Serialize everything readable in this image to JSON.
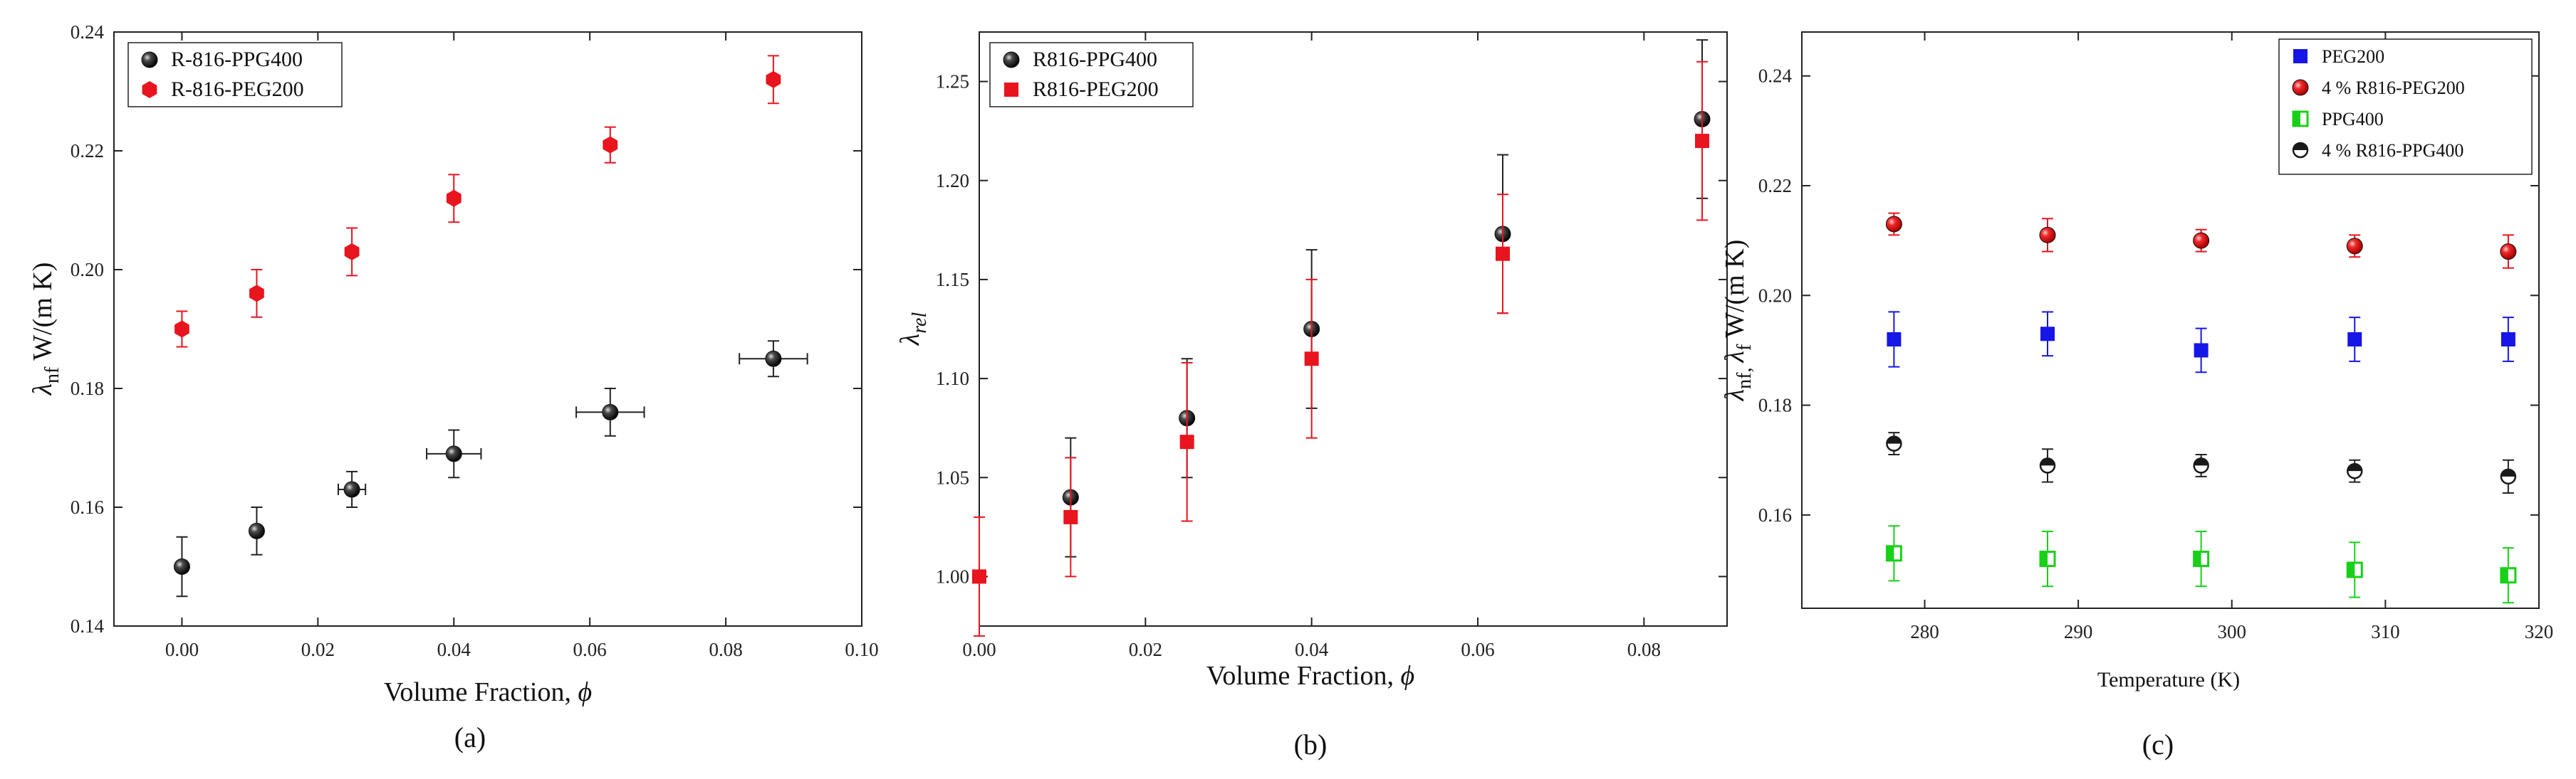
{
  "chart_data": [
    {
      "type": "scatter",
      "panel_label": "(a)",
      "xlabel": "Volume Fraction, ",
      "xlabel_symbol": "ϕ",
      "ylabel": "λ",
      "ylabel_sub": "nf",
      "ylabel_unit": " W/(m K)",
      "xlim": [
        -0.01,
        0.1
      ],
      "ylim": [
        0.14,
        0.24
      ],
      "xticks": [
        "0.00",
        "0.02",
        "0.04",
        "0.06",
        "0.08",
        "0.10"
      ],
      "xtick_values": [
        0.0,
        0.02,
        0.04,
        0.06,
        0.08,
        0.1
      ],
      "yticks": [
        "0.14",
        "0.16",
        "0.18",
        "0.20",
        "0.22",
        "0.24"
      ],
      "ytick_values": [
        0.14,
        0.16,
        0.18,
        0.2,
        0.22,
        0.24
      ],
      "legend_position": "top-left",
      "series": [
        {
          "name": "R-816-PPG400",
          "marker": "sphere",
          "color": "#1a1a1a",
          "x": [
            0.0,
            0.011,
            0.025,
            0.04,
            0.063,
            0.087
          ],
          "y": [
            0.15,
            0.156,
            0.163,
            0.169,
            0.176,
            0.185
          ],
          "yerr": [
            0.005,
            0.004,
            0.003,
            0.004,
            0.004,
            0.003
          ],
          "xerr": [
            0,
            0,
            0.002,
            0.004,
            0.005,
            0.005
          ]
        },
        {
          "name": "R-816-PEG200",
          "marker": "hexagon",
          "color": "#e8141e",
          "x": [
            0.0,
            0.011,
            0.025,
            0.04,
            0.063,
            0.087
          ],
          "y": [
            0.19,
            0.196,
            0.203,
            0.212,
            0.221,
            0.232
          ],
          "yerr": [
            0.003,
            0.004,
            0.004,
            0.004,
            0.003,
            0.004
          ],
          "xerr": [
            0,
            0,
            0,
            0,
            0,
            0
          ]
        }
      ]
    },
    {
      "type": "scatter",
      "panel_label": "(b)",
      "xlabel": "Volume Fraction, ",
      "xlabel_symbol": "ϕ",
      "ylabel": "λ",
      "ylabel_sub": "rel",
      "ylabel_unit": "",
      "xlim": [
        0.0,
        0.09
      ],
      "ylim": [
        0.975,
        1.275
      ],
      "xticks": [
        "0.00",
        "0.02",
        "0.04",
        "0.06",
        "0.08"
      ],
      "xtick_values": [
        0.0,
        0.02,
        0.04,
        0.06,
        0.08
      ],
      "yticks": [
        "1.00",
        "1.05",
        "1.10",
        "1.15",
        "1.20",
        "1.25"
      ],
      "ytick_values": [
        1.0,
        1.05,
        1.1,
        1.15,
        1.2,
        1.25
      ],
      "legend_position": "top-left",
      "series": [
        {
          "name": "R816-PPG400",
          "marker": "sphere",
          "color": "#1a1a1a",
          "x": [
            0.011,
            0.025,
            0.04,
            0.063,
            0.087
          ],
          "y": [
            1.04,
            1.08,
            1.125,
            1.173,
            1.231
          ],
          "yerr": [
            0.03,
            0.03,
            0.04,
            0.04,
            0.04
          ]
        },
        {
          "name": "R816-PEG200",
          "marker": "square",
          "color": "#e8141e",
          "x": [
            0.0,
            0.011,
            0.025,
            0.04,
            0.063,
            0.087
          ],
          "y": [
            1.0,
            1.03,
            1.068,
            1.11,
            1.163,
            1.22
          ],
          "yerr": [
            0.03,
            0.03,
            0.04,
            0.04,
            0.03,
            0.04
          ]
        }
      ]
    },
    {
      "type": "scatter",
      "panel_label": "(c)",
      "xlabel": "Temperature (K)",
      "xlabel_symbol": "",
      "ylabel": "λ",
      "ylabel_sub": "nf, ",
      "ylabel_mid": "λ",
      "ylabel_sub2": "f",
      "ylabel_unit": " W/(m K)",
      "xlim": [
        272,
        320
      ],
      "ylim": [
        0.143,
        0.248
      ],
      "xticks": [
        "280",
        "290",
        "300",
        "310",
        "320"
      ],
      "xtick_values": [
        280,
        290,
        300,
        310,
        320
      ],
      "yticks": [
        "0.16",
        "0.18",
        "0.20",
        "0.22",
        "0.24"
      ],
      "ytick_values": [
        0.16,
        0.18,
        0.2,
        0.22,
        0.24
      ],
      "legend_position": "top-right",
      "series": [
        {
          "name": "PEG200",
          "marker": "square",
          "color": "#1616e6",
          "x": [
            278,
            288,
            298,
            308,
            318
          ],
          "y": [
            0.192,
            0.193,
            0.19,
            0.192,
            0.192
          ],
          "yerr": [
            0.005,
            0.004,
            0.004,
            0.004,
            0.004
          ]
        },
        {
          "name": "4 % R816-PEG200",
          "marker": "sphere",
          "color": "#e8141e",
          "x": [
            278,
            288,
            298,
            308,
            318
          ],
          "y": [
            0.213,
            0.211,
            0.21,
            0.209,
            0.208
          ],
          "yerr": [
            0.002,
            0.003,
            0.002,
            0.002,
            0.003
          ]
        },
        {
          "name": "PPG400",
          "marker": "half-square",
          "color": "#18d018",
          "x": [
            278,
            288,
            298,
            308,
            318
          ],
          "y": [
            0.153,
            0.152,
            0.152,
            0.15,
            0.149
          ],
          "yerr": [
            0.005,
            0.005,
            0.005,
            0.005,
            0.005
          ]
        },
        {
          "name": "4 % R816-PPG400",
          "marker": "half-circle",
          "color": "#1a1a1a",
          "x": [
            278,
            288,
            298,
            308,
            318
          ],
          "y": [
            0.173,
            0.169,
            0.169,
            0.168,
            0.167
          ],
          "yerr": [
            0.002,
            0.003,
            0.002,
            0.002,
            0.003
          ]
        }
      ]
    }
  ]
}
